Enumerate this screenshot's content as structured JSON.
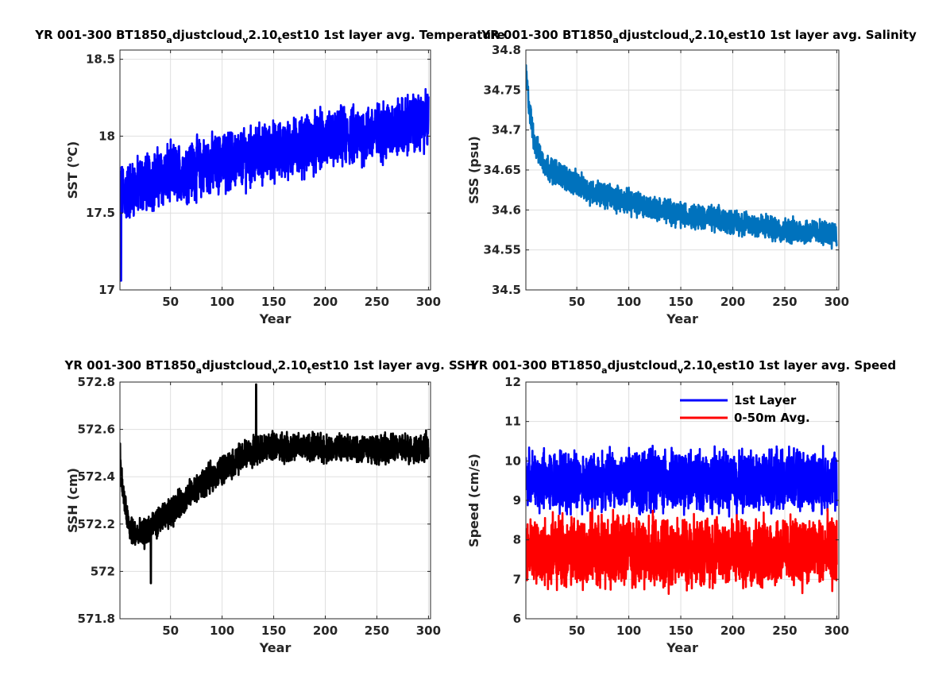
{
  "figure": {
    "background": "#ffffff",
    "panels_layout": "2x2"
  },
  "chart_data": [
    {
      "type": "line",
      "title_parts": [
        "YR 001-300 BT1850",
        "a",
        "djustcloud",
        "v",
        "2.10",
        "t",
        "est10 1st layer avg. Temperature"
      ],
      "xlabel": "Year",
      "ylabel": "SST (",
      "ylabel_sup": "o",
      "ylabel_tail": "C)",
      "xlim": [
        1,
        302
      ],
      "ylim": [
        17,
        18.56
      ],
      "xticks": [
        50,
        100,
        150,
        200,
        250,
        300
      ],
      "xtick_labels": [
        "50",
        "100",
        "150",
        "200",
        "250",
        "300"
      ],
      "yticks": [
        17,
        17.5,
        18,
        18.5
      ],
      "ytick_labels": [
        "17",
        "17.5",
        "18",
        "18.5"
      ],
      "grid": true,
      "series": [
        {
          "color": "#0000ff",
          "trend": [
            [
              1,
              17.65
            ],
            [
              5,
              17.62
            ],
            [
              25,
              17.7
            ],
            [
              50,
              17.75
            ],
            [
              100,
              17.83
            ],
            [
              150,
              17.9
            ],
            [
              200,
              17.97
            ],
            [
              250,
              18.02
            ],
            [
              300,
              18.1
            ]
          ],
          "amplitude": 0.22,
          "x_start": 1,
          "x_end": 300,
          "anchor_values": [
            [
              2,
              17.06
            ],
            [
              3,
              17.8
            ]
          ]
        }
      ]
    },
    {
      "type": "line",
      "title_parts": [
        "YR 001-300 BT1850",
        "a",
        "djustcloud",
        "v",
        "2.10",
        "t",
        "est10 1st layer avg. Salinity"
      ],
      "xlabel": "Year",
      "ylabel": "SSS (psu)",
      "xlim": [
        1,
        302
      ],
      "ylim": [
        34.5,
        34.8
      ],
      "xticks": [
        50,
        100,
        150,
        200,
        250,
        300
      ],
      "xtick_labels": [
        "50",
        "100",
        "150",
        "200",
        "250",
        "300"
      ],
      "yticks": [
        34.5,
        34.55,
        34.6,
        34.65,
        34.7,
        34.75,
        34.8
      ],
      "ytick_labels": [
        "34.5",
        "34.55",
        "34.6",
        "34.65",
        "34.7",
        "34.75",
        "34.8"
      ],
      "grid": true,
      "series": [
        {
          "color": "#0072bd",
          "trend": [
            [
              1,
              34.77
            ],
            [
              5,
              34.72
            ],
            [
              10,
              34.68
            ],
            [
              20,
              34.655
            ],
            [
              40,
              34.64
            ],
            [
              60,
              34.625
            ],
            [
              100,
              34.61
            ],
            [
              150,
              34.595
            ],
            [
              200,
              34.585
            ],
            [
              250,
              34.575
            ],
            [
              300,
              34.57
            ]
          ],
          "amplitude": 0.018,
          "x_start": 1,
          "x_end": 300
        }
      ]
    },
    {
      "type": "line",
      "title_parts": [
        "YR 001-300 BT1850",
        "a",
        "djustcloud",
        "v",
        "2.10",
        "t",
        "est10 1st layer avg. SSH"
      ],
      "xlabel": "Year",
      "ylabel": "SSH (cm)",
      "xlim": [
        1,
        302
      ],
      "ylim": [
        571.8,
        572.8
      ],
      "xticks": [
        50,
        100,
        150,
        200,
        250,
        300
      ],
      "xtick_labels": [
        "50",
        "100",
        "150",
        "200",
        "250",
        "300"
      ],
      "yticks": [
        571.8,
        572,
        572.2,
        572.4,
        572.6,
        572.8
      ],
      "ytick_labels": [
        "571.8",
        "572",
        "572.2",
        "572.4",
        "572.6",
        "572.8"
      ],
      "grid": true,
      "series": [
        {
          "color": "#000000",
          "trend": [
            [
              1,
              572.45
            ],
            [
              5,
              572.3
            ],
            [
              10,
              572.18
            ],
            [
              20,
              572.15
            ],
            [
              30,
              572.18
            ],
            [
              50,
              572.25
            ],
            [
              75,
              572.35
            ],
            [
              100,
              572.43
            ],
            [
              125,
              572.5
            ],
            [
              150,
              572.53
            ],
            [
              200,
              572.52
            ],
            [
              250,
              572.52
            ],
            [
              300,
              572.52
            ]
          ],
          "amplitude": 0.07,
          "x_start": 1,
          "x_end": 300,
          "anchor_values": [
            [
              1,
              572.54
            ],
            [
              133,
              572.79
            ],
            [
              31,
              571.95
            ]
          ]
        }
      ]
    },
    {
      "type": "line",
      "title_parts": [
        "YR 001-300 BT1850",
        "a",
        "djustcloud",
        "v",
        "2.10",
        "t",
        "est10 1st layer avg. Speed"
      ],
      "xlabel": "Year",
      "ylabel": "Speed (cm/s)",
      "xlim": [
        1,
        302
      ],
      "ylim": [
        6,
        12
      ],
      "xticks": [
        50,
        100,
        150,
        200,
        250,
        300
      ],
      "xtick_labels": [
        "50",
        "100",
        "150",
        "200",
        "250",
        "300"
      ],
      "yticks": [
        6,
        7,
        8,
        9,
        10,
        11,
        12
      ],
      "ytick_labels": [
        "6",
        "7",
        "8",
        "9",
        "10",
        "11",
        "12"
      ],
      "grid": true,
      "legend": {
        "placement": "top-right"
      },
      "series": [
        {
          "name": "1st Layer",
          "color": "#0000ff",
          "trend": [
            [
              1,
              9.5
            ],
            [
              300,
              9.5
            ]
          ],
          "amplitude": 0.85,
          "x_start": 1,
          "x_end": 300
        },
        {
          "name": "0-50m Avg.",
          "color": "#ff0000",
          "trend": [
            [
              1,
              7.7
            ],
            [
              300,
              7.7
            ]
          ],
          "amplitude": 1.0,
          "x_start": 1,
          "x_end": 300
        }
      ]
    }
  ]
}
